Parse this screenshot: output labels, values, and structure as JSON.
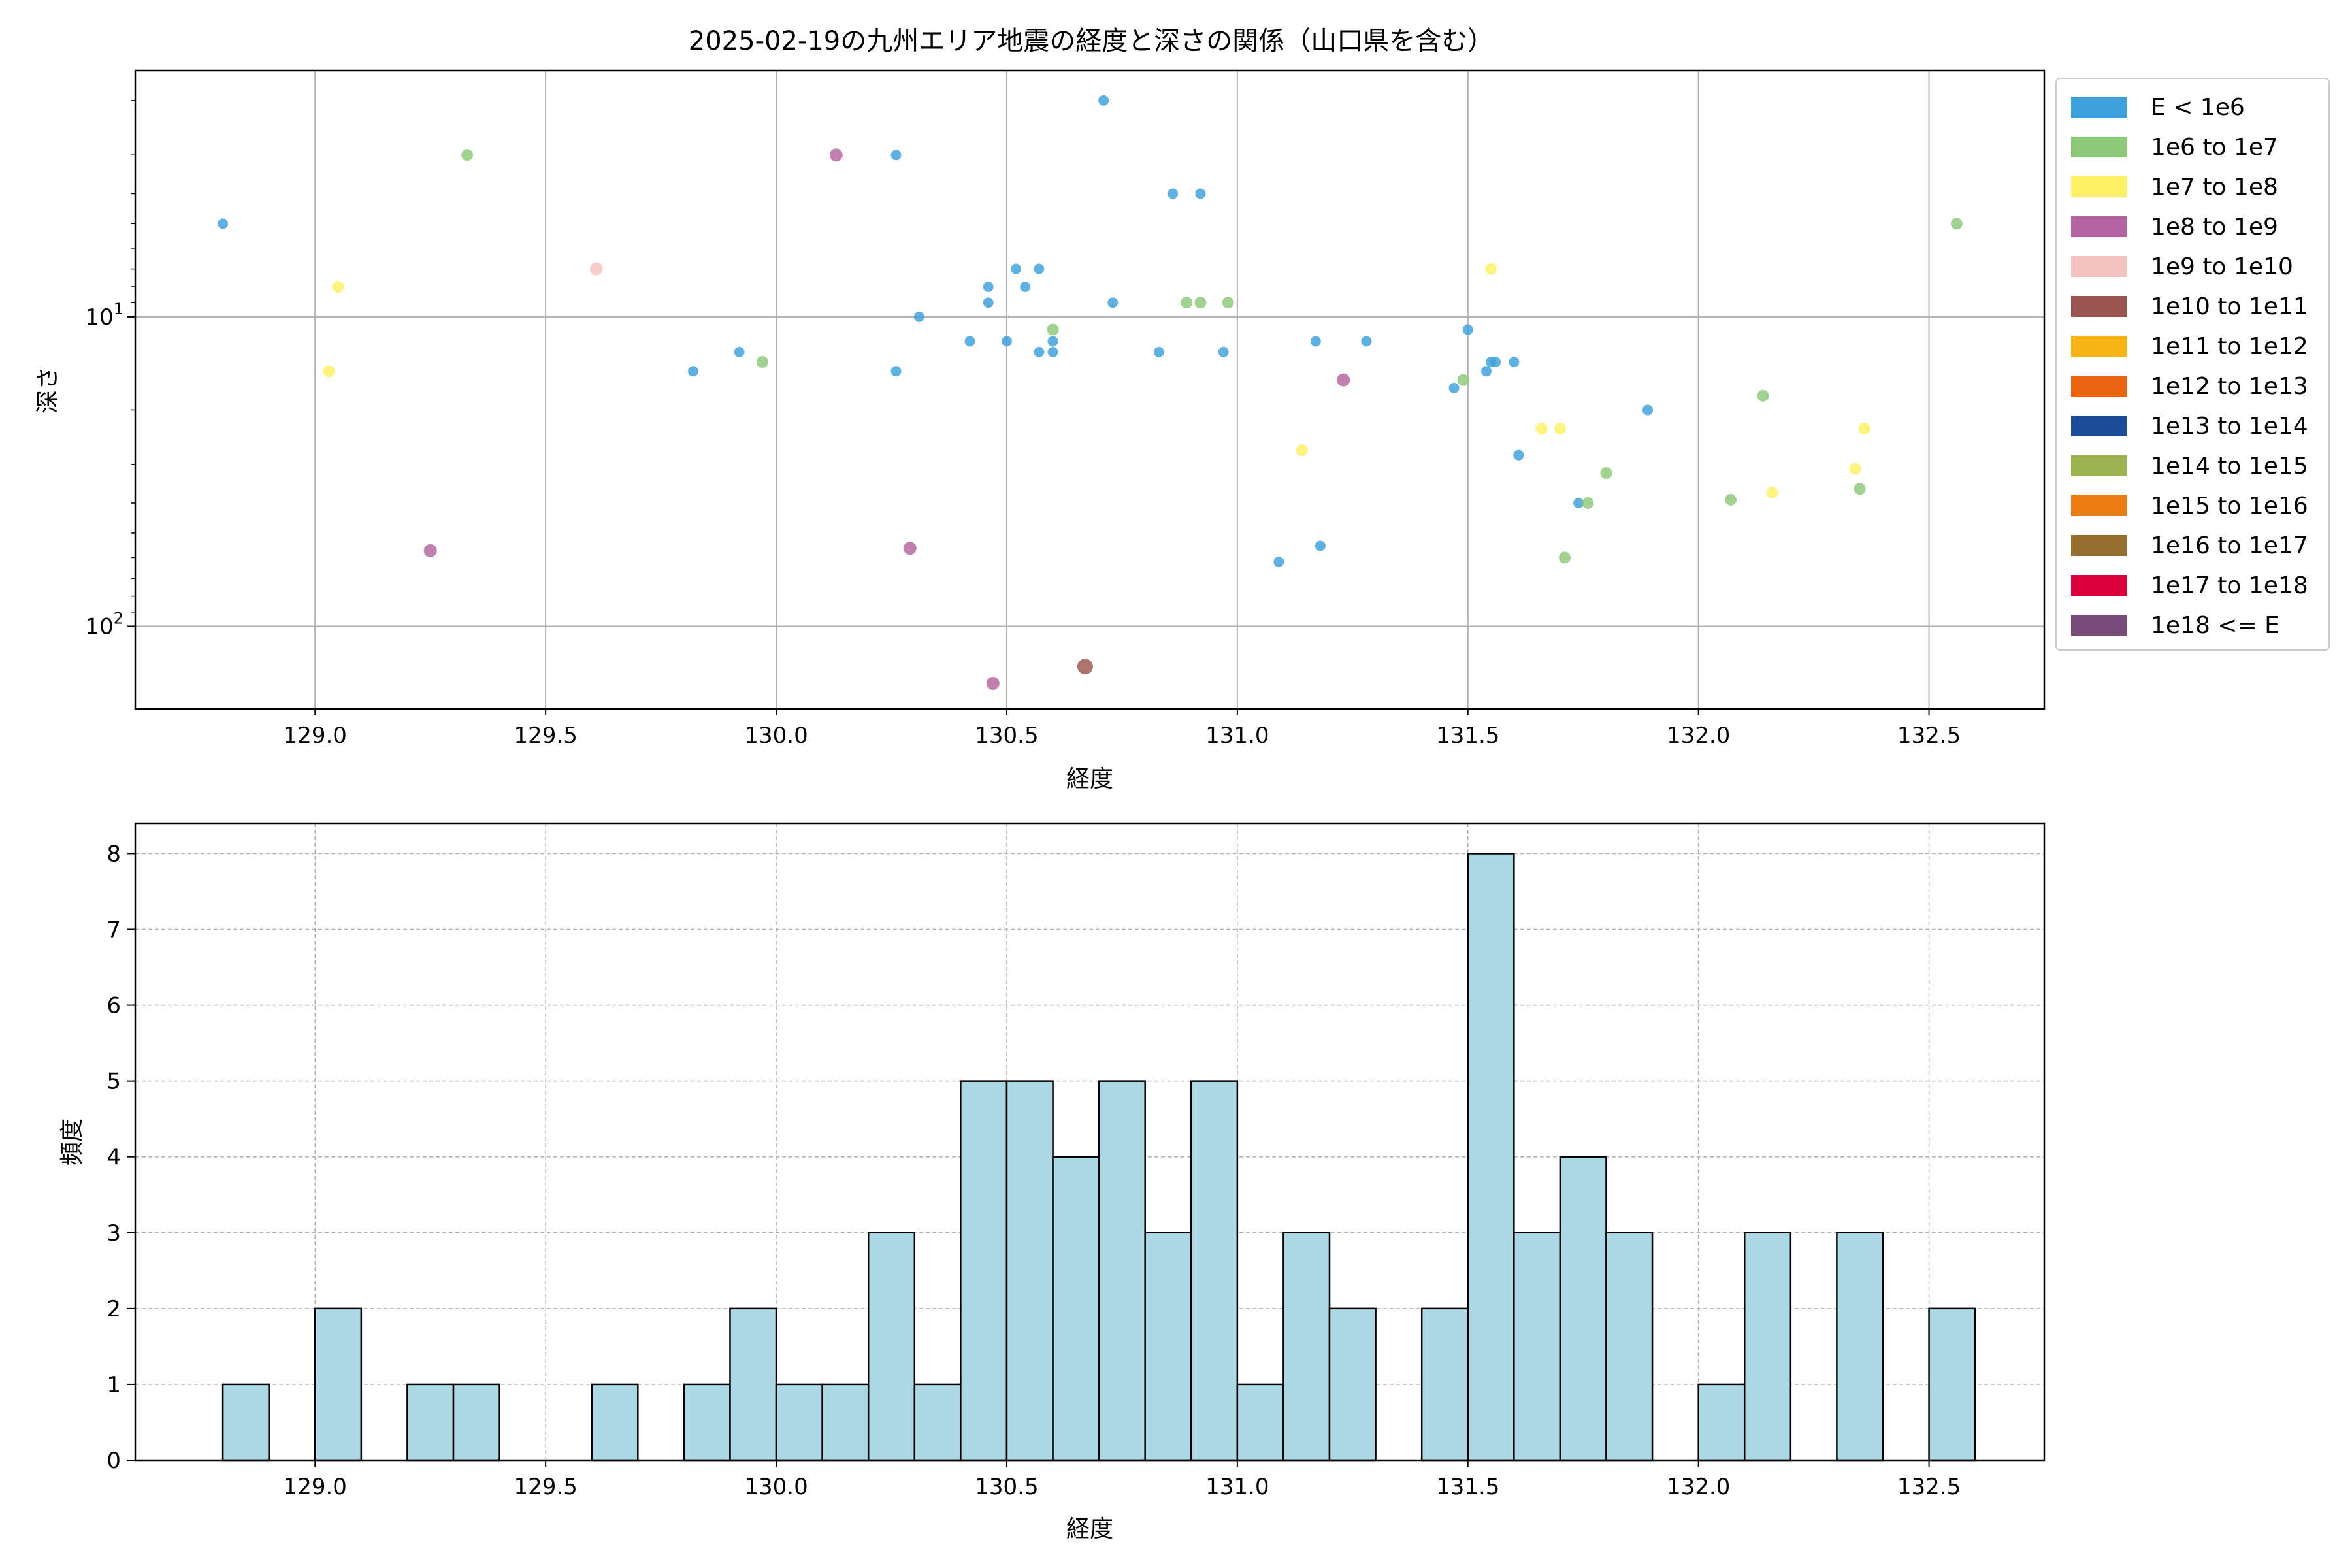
{
  "chart_data": [
    {
      "type": "scatter",
      "title": "2025-02-19の九州エリア地震の経度と深さの関係（山口県を含む）",
      "xlabel": "経度",
      "ylabel": "深さ",
      "xlim": [
        128.61,
        132.75
      ],
      "ylim": [
        185,
        1.6
      ],
      "yscale": "log",
      "y_inverted": true,
      "grid": true,
      "legend_position": "outside-right",
      "x_ticks": [
        "129.0",
        "129.5",
        "130.0",
        "130.5",
        "131.0",
        "131.5",
        "132.0",
        "132.5"
      ],
      "y_ticks": [
        {
          "base": "10",
          "exp": "1",
          "value": 10
        },
        {
          "base": "10",
          "exp": "2",
          "value": 100
        }
      ],
      "legend": [
        {
          "label": "E < 1e6",
          "color": "#3ca0dc"
        },
        {
          "label": "1e6 to 1e7",
          "color": "#8cc878"
        },
        {
          "label": "1e7 to 1e8",
          "color": "#fff064"
        },
        {
          "label": "1e8 to 1e9",
          "color": "#b464a0"
        },
        {
          "label": "1e9 to 1e10",
          "color": "#f5c3be"
        },
        {
          "label": "1e10 to 1e11",
          "color": "#9b5550"
        },
        {
          "label": "1e11 to 1e12",
          "color": "#f5b414"
        },
        {
          "label": "1e12 to 1e13",
          "color": "#eb6414"
        },
        {
          "label": "1e13 to 1e14",
          "color": "#1e4b96"
        },
        {
          "label": "1e14 to 1e15",
          "color": "#9bb450"
        },
        {
          "label": "1e15 to 1e16",
          "color": "#eb7d14"
        },
        {
          "label": "1e16 to 1e17",
          "color": "#966e2d"
        },
        {
          "label": "1e17 to 1e18",
          "color": "#dc003c"
        },
        {
          "label": "1e18 <= E",
          "color": "#784b78"
        }
      ],
      "points": [
        {
          "x": 128.8,
          "y": 5,
          "cls": 0
        },
        {
          "x": 129.82,
          "y": 15,
          "cls": 0
        },
        {
          "x": 129.92,
          "y": 13,
          "cls": 0
        },
        {
          "x": 130.26,
          "y": 3,
          "cls": 0
        },
        {
          "x": 130.26,
          "y": 15,
          "cls": 0
        },
        {
          "x": 130.31,
          "y": 10,
          "cls": 0
        },
        {
          "x": 130.42,
          "y": 12,
          "cls": 0
        },
        {
          "x": 130.46,
          "y": 8,
          "cls": 0
        },
        {
          "x": 130.46,
          "y": 9,
          "cls": 0
        },
        {
          "x": 130.5,
          "y": 12,
          "cls": 0
        },
        {
          "x": 130.52,
          "y": 7,
          "cls": 0
        },
        {
          "x": 130.54,
          "y": 8,
          "cls": 0
        },
        {
          "x": 130.57,
          "y": 7,
          "cls": 0
        },
        {
          "x": 130.57,
          "y": 13,
          "cls": 0
        },
        {
          "x": 130.6,
          "y": 12,
          "cls": 0
        },
        {
          "x": 130.6,
          "y": 13,
          "cls": 0
        },
        {
          "x": 130.71,
          "y": 2,
          "cls": 0
        },
        {
          "x": 130.73,
          "y": 9,
          "cls": 0
        },
        {
          "x": 130.83,
          "y": 13,
          "cls": 0
        },
        {
          "x": 130.86,
          "y": 4,
          "cls": 0
        },
        {
          "x": 130.92,
          "y": 4,
          "cls": 0
        },
        {
          "x": 130.97,
          "y": 13,
          "cls": 0
        },
        {
          "x": 131.09,
          "y": 62,
          "cls": 0
        },
        {
          "x": 131.17,
          "y": 12,
          "cls": 0
        },
        {
          "x": 131.18,
          "y": 55,
          "cls": 0
        },
        {
          "x": 131.28,
          "y": 12,
          "cls": 0
        },
        {
          "x": 131.47,
          "y": 17,
          "cls": 0
        },
        {
          "x": 131.5,
          "y": 11,
          "cls": 0
        },
        {
          "x": 131.54,
          "y": 15,
          "cls": 0
        },
        {
          "x": 131.55,
          "y": 14,
          "cls": 0
        },
        {
          "x": 131.56,
          "y": 14,
          "cls": 0
        },
        {
          "x": 131.6,
          "y": 14,
          "cls": 0
        },
        {
          "x": 131.61,
          "y": 28,
          "cls": 0
        },
        {
          "x": 131.74,
          "y": 40,
          "cls": 0
        },
        {
          "x": 131.89,
          "y": 20,
          "cls": 0
        },
        {
          "x": 129.33,
          "y": 3,
          "cls": 1
        },
        {
          "x": 129.97,
          "y": 14,
          "cls": 1
        },
        {
          "x": 130.6,
          "y": 11,
          "cls": 1
        },
        {
          "x": 130.89,
          "y": 9,
          "cls": 1
        },
        {
          "x": 130.92,
          "y": 9,
          "cls": 1
        },
        {
          "x": 130.98,
          "y": 9,
          "cls": 1
        },
        {
          "x": 131.49,
          "y": 16,
          "cls": 1
        },
        {
          "x": 131.71,
          "y": 60,
          "cls": 1
        },
        {
          "x": 131.76,
          "y": 40,
          "cls": 1
        },
        {
          "x": 131.8,
          "y": 32,
          "cls": 1
        },
        {
          "x": 132.07,
          "y": 39,
          "cls": 1
        },
        {
          "x": 132.14,
          "y": 18,
          "cls": 1
        },
        {
          "x": 132.35,
          "y": 36,
          "cls": 1
        },
        {
          "x": 132.56,
          "y": 5,
          "cls": 1
        },
        {
          "x": 129.03,
          "y": 15,
          "cls": 2
        },
        {
          "x": 129.05,
          "y": 8,
          "cls": 2
        },
        {
          "x": 131.14,
          "y": 27,
          "cls": 2
        },
        {
          "x": 131.55,
          "y": 7,
          "cls": 2
        },
        {
          "x": 131.66,
          "y": 23,
          "cls": 2
        },
        {
          "x": 131.7,
          "y": 23,
          "cls": 2
        },
        {
          "x": 132.16,
          "y": 37,
          "cls": 2
        },
        {
          "x": 132.34,
          "y": 31,
          "cls": 2
        },
        {
          "x": 132.36,
          "y": 23,
          "cls": 2
        },
        {
          "x": 129.25,
          "y": 57,
          "cls": 3
        },
        {
          "x": 130.13,
          "y": 3,
          "cls": 3
        },
        {
          "x": 130.29,
          "y": 56,
          "cls": 3
        },
        {
          "x": 130.47,
          "y": 153,
          "cls": 3
        },
        {
          "x": 131.23,
          "y": 16,
          "cls": 3
        },
        {
          "x": 129.61,
          "y": 7,
          "cls": 4
        },
        {
          "x": 130.67,
          "y": 135,
          "cls": 5
        }
      ]
    },
    {
      "type": "bar",
      "subtype": "histogram",
      "xlabel": "経度",
      "ylabel": "頻度",
      "xlim": [
        128.61,
        132.75
      ],
      "ylim": [
        0,
        8.4
      ],
      "grid": true,
      "bar_color": "#add8e6",
      "x_ticks": [
        "129.0",
        "129.5",
        "130.0",
        "130.5",
        "131.0",
        "131.5",
        "132.0",
        "132.5"
      ],
      "y_ticks": [
        "0",
        "1",
        "2",
        "3",
        "4",
        "5",
        "6",
        "7",
        "8"
      ],
      "bin_start": 128.8,
      "bin_width": 0.1,
      "counts": [
        1,
        0,
        2,
        0,
        1,
        1,
        0,
        0,
        1,
        0,
        1,
        2,
        1,
        1,
        3,
        1,
        5,
        5,
        4,
        5,
        3,
        5,
        1,
        3,
        2,
        0,
        2,
        8,
        3,
        4,
        3,
        0,
        1,
        3,
        0,
        3,
        0,
        2
      ]
    }
  ]
}
